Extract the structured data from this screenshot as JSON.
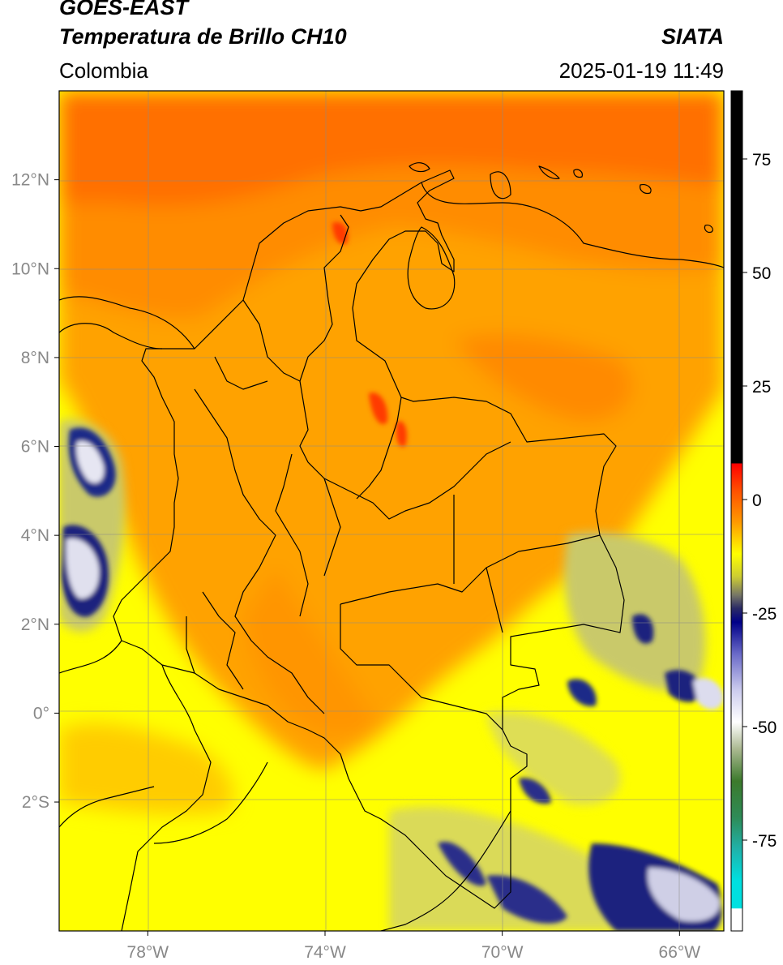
{
  "header": {
    "satellite": "GOES-EAST",
    "product": "Temperatura de Brillo CH10",
    "region": "Colombia",
    "source": "SIATA",
    "datetime": "2025-01-19 11:49"
  },
  "map": {
    "lon_range": [
      -80,
      -65
    ],
    "lat_range": [
      -4.9,
      14.0
    ],
    "x_ticks": [
      {
        "lon": -78,
        "label": "78°W"
      },
      {
        "lon": -74,
        "label": "74°W"
      },
      {
        "lon": -70,
        "label": "70°W"
      },
      {
        "lon": -66,
        "label": "66°W"
      }
    ],
    "y_ticks": [
      {
        "lat": 12,
        "label": "12°N"
      },
      {
        "lat": 10,
        "label": "10°N"
      },
      {
        "lat": 8,
        "label": "8°N"
      },
      {
        "lat": 6,
        "label": "6°N"
      },
      {
        "lat": 4,
        "label": "4°N"
      },
      {
        "lat": 2,
        "label": "2°N"
      },
      {
        "lat": 0,
        "label": "0°"
      },
      {
        "lat": -2,
        "label": "2°S"
      }
    ],
    "gridlines": true,
    "colors": {
      "warm": "#ff7a00",
      "mid": "#ffb400",
      "cool": "#ffff00",
      "cloud_low": "#c9c96a",
      "cloud_mid": "#1a237e",
      "cloud_high": "#e8e8f4"
    }
  },
  "colorbar": {
    "range": [
      -95,
      90
    ],
    "ticks": [
      {
        "value": 75,
        "label": "75"
      },
      {
        "value": 50,
        "label": "50"
      },
      {
        "value": 25,
        "label": "25"
      },
      {
        "value": 0,
        "label": "0"
      },
      {
        "value": -25,
        "label": "-25"
      },
      {
        "value": -50,
        "label": "-50"
      },
      {
        "value": -75,
        "label": "-75"
      }
    ],
    "stops": [
      {
        "value": 90,
        "color": "#000000"
      },
      {
        "value": 8,
        "color": "#000000"
      },
      {
        "value": 7.9,
        "color": "#ff0000"
      },
      {
        "value": 2,
        "color": "#ff5000"
      },
      {
        "value": -5,
        "color": "#ff9a00"
      },
      {
        "value": -12,
        "color": "#ffff00"
      },
      {
        "value": -17,
        "color": "#cccc33"
      },
      {
        "value": -21,
        "color": "#777766"
      },
      {
        "value": -24,
        "color": "#2a2a66"
      },
      {
        "value": -27,
        "color": "#000088"
      },
      {
        "value": -34,
        "color": "#6a6ac8"
      },
      {
        "value": -42,
        "color": "#ccccee"
      },
      {
        "value": -49,
        "color": "#ffffff"
      },
      {
        "value": -55,
        "color": "#aab890"
      },
      {
        "value": -62,
        "color": "#3c7a2c"
      },
      {
        "value": -70,
        "color": "#2e8b57"
      },
      {
        "value": -77,
        "color": "#20b2aa"
      },
      {
        "value": -84,
        "color": "#00e0e0"
      },
      {
        "value": -90,
        "color": "#00e0e0"
      },
      {
        "value": -90.1,
        "color": "#ffffff"
      },
      {
        "value": -95,
        "color": "#ffffff"
      }
    ]
  }
}
